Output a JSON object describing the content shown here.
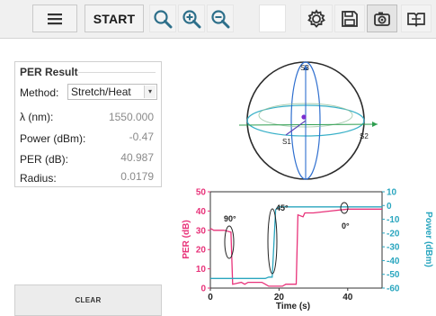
{
  "toolbar": {
    "start_label": "START",
    "icons": [
      "menu-icon",
      "zoom-fit-icon",
      "zoom-in-icon",
      "zoom-out-icon",
      "gear-icon",
      "save-icon",
      "camera-icon",
      "book-icon"
    ]
  },
  "per_result": {
    "title": "PER Result",
    "method_label": "Method:",
    "method_value": "Stretch/Heat",
    "fields": [
      {
        "label": "λ (nm):",
        "value": "1550.000"
      },
      {
        "label": "Power (dBm):",
        "value": "-0.47"
      },
      {
        "label": "PER (dB):",
        "value": "40.987"
      },
      {
        "label": "Radius:",
        "value": "0.0179"
      }
    ]
  },
  "clear_label": "CLEAR",
  "sphere": {
    "s1_label": "S1",
    "s2_label": "S2",
    "s3_label": "S3"
  },
  "chart_data": {
    "type": "line",
    "xlabel": "Time (s)",
    "ylabel_left": "PER (dB)",
    "ylabel_right": "Power (dBm)",
    "xlim": [
      0,
      50
    ],
    "ylim_left": [
      0,
      50
    ],
    "ylim_right": [
      -60,
      10
    ],
    "x_ticks": [
      "0",
      "20",
      "40"
    ],
    "y_ticks_left": [
      "0",
      "10",
      "20",
      "30",
      "40",
      "50"
    ],
    "y_ticks_right": [
      "-60",
      "-50",
      "-40",
      "-30",
      "-20",
      "-10",
      "0",
      "10"
    ],
    "annotations": [
      "90°",
      "45°",
      "0°"
    ],
    "colors": {
      "per": "#e8337a",
      "power": "#2aa6bf"
    },
    "series": [
      {
        "name": "PER (dB)",
        "x": [
          0,
          1,
          4,
          6,
          6.5,
          9,
          10,
          11,
          15,
          16,
          17,
          19,
          21,
          22,
          25,
          25.5,
          27,
          27.5,
          30,
          35,
          40,
          45,
          50
        ],
        "y": [
          31,
          30,
          30,
          29,
          2,
          3,
          2,
          3,
          3,
          2,
          1,
          1,
          1,
          2,
          2,
          38,
          37,
          39,
          39,
          40,
          41,
          41,
          41
        ]
      },
      {
        "name": "Power (dBm)",
        "x": [
          0,
          4,
          5,
          6,
          6.5,
          15,
          16,
          17,
          18,
          19,
          20,
          22,
          25,
          30,
          35,
          40,
          45,
          50
        ],
        "y": [
          -53,
          -53,
          -53,
          -53,
          -53,
          -53,
          -53,
          -52,
          -52,
          -3,
          -1,
          -1,
          -1,
          -1,
          -1,
          -1,
          -1,
          -1
        ]
      }
    ]
  }
}
